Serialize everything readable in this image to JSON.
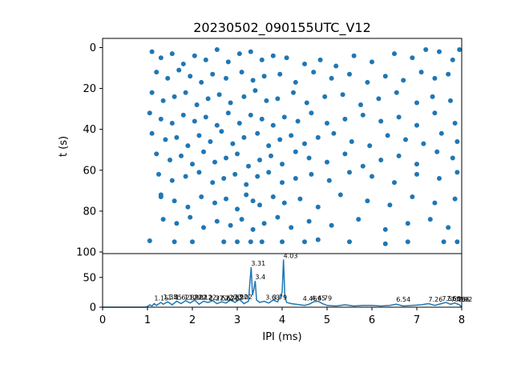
{
  "chart_data": [
    {
      "type": "scatter",
      "title": "20230502_090155UTC_V12",
      "xlabel": "",
      "ylabel": "t (s)",
      "xlim": [
        0,
        8
      ],
      "ylim": [
        100,
        -4
      ],
      "y_inverted": true,
      "yticks": [
        0,
        20,
        40,
        60,
        80,
        100
      ],
      "color": "#1f77b4",
      "series": [
        {
          "points": [
            [
              1.05,
              94.5
            ],
            [
              1.3,
              73
            ],
            [
              1.6,
              95
            ],
            [
              2.0,
              95
            ],
            [
              2.7,
              95
            ],
            [
              3.0,
              95
            ],
            [
              3.3,
              95
            ],
            [
              3.55,
              95
            ],
            [
              4.0,
              95
            ],
            [
              4.5,
              95
            ],
            [
              4.8,
              94
            ],
            [
              5.5,
              95
            ],
            [
              6.3,
              96
            ],
            [
              6.8,
              95
            ],
            [
              7.6,
              95
            ],
            [
              7.9,
              95
            ],
            [
              1.1,
              2
            ],
            [
              1.3,
              5
            ],
            [
              1.55,
              3
            ],
            [
              1.8,
              8
            ],
            [
              2.05,
              4
            ],
            [
              2.3,
              6
            ],
            [
              2.55,
              1
            ],
            [
              2.8,
              7
            ],
            [
              3.05,
              3
            ],
            [
              3.3,
              2
            ],
            [
              3.55,
              6
            ],
            [
              3.8,
              4
            ],
            [
              4.1,
              5
            ],
            [
              4.5,
              8
            ],
            [
              4.85,
              6
            ],
            [
              5.2,
              9
            ],
            [
              5.6,
              4
            ],
            [
              6.0,
              7
            ],
            [
              6.5,
              3
            ],
            [
              6.9,
              5
            ],
            [
              7.2,
              1
            ],
            [
              7.5,
              2
            ],
            [
              7.8,
              6
            ],
            [
              7.95,
              1
            ],
            [
              1.2,
              12
            ],
            [
              1.45,
              15
            ],
            [
              1.7,
              11
            ],
            [
              1.95,
              14
            ],
            [
              2.2,
              17
            ],
            [
              2.45,
              13
            ],
            [
              2.75,
              15
            ],
            [
              3.1,
              12
            ],
            [
              3.35,
              16
            ],
            [
              3.6,
              14
            ],
            [
              3.95,
              13
            ],
            [
              4.3,
              17
            ],
            [
              4.7,
              12
            ],
            [
              5.1,
              15
            ],
            [
              5.5,
              13
            ],
            [
              5.9,
              17
            ],
            [
              6.3,
              14
            ],
            [
              6.7,
              16
            ],
            [
              7.1,
              12
            ],
            [
              7.4,
              15
            ],
            [
              7.7,
              13
            ],
            [
              1.1,
              22
            ],
            [
              1.35,
              26
            ],
            [
              1.6,
              24
            ],
            [
              1.85,
              22
            ],
            [
              2.1,
              28
            ],
            [
              2.35,
              25
            ],
            [
              2.6,
              23
            ],
            [
              2.85,
              27
            ],
            [
              3.15,
              24
            ],
            [
              3.4,
              21
            ],
            [
              3.65,
              26
            ],
            [
              3.9,
              25
            ],
            [
              4.25,
              22
            ],
            [
              4.55,
              27
            ],
            [
              4.95,
              24
            ],
            [
              5.35,
              23
            ],
            [
              5.75,
              28
            ],
            [
              6.15,
              25
            ],
            [
              6.55,
              22
            ],
            [
              7.0,
              27
            ],
            [
              7.35,
              24
            ],
            [
              7.75,
              26
            ],
            [
              1.05,
              32
            ],
            [
              1.3,
              35
            ],
            [
              1.55,
              37
            ],
            [
              1.8,
              33
            ],
            [
              2.05,
              36
            ],
            [
              2.3,
              34
            ],
            [
              2.55,
              38
            ],
            [
              2.8,
              32
            ],
            [
              3.05,
              37
            ],
            [
              3.3,
              33
            ],
            [
              3.55,
              35
            ],
            [
              3.8,
              38
            ],
            [
              4.05,
              34
            ],
            [
              4.35,
              36
            ],
            [
              4.65,
              32
            ],
            [
              5.0,
              37
            ],
            [
              5.4,
              35
            ],
            [
              5.8,
              33
            ],
            [
              6.2,
              36
            ],
            [
              6.6,
              34
            ],
            [
              7.0,
              38
            ],
            [
              7.4,
              32
            ],
            [
              7.85,
              37
            ],
            [
              1.1,
              42
            ],
            [
              1.4,
              45
            ],
            [
              1.65,
              44
            ],
            [
              1.9,
              48
            ],
            [
              2.15,
              43
            ],
            [
              2.4,
              46
            ],
            [
              2.65,
              41
            ],
            [
              2.9,
              47
            ],
            [
              3.15,
              44
            ],
            [
              3.45,
              42
            ],
            [
              3.7,
              48
            ],
            [
              3.95,
              45
            ],
            [
              4.2,
              43
            ],
            [
              4.5,
              47
            ],
            [
              4.8,
              44
            ],
            [
              5.15,
              42
            ],
            [
              5.55,
              46
            ],
            [
              5.95,
              48
            ],
            [
              6.35,
              43
            ],
            [
              6.75,
              45
            ],
            [
              7.15,
              47
            ],
            [
              7.55,
              42
            ],
            [
              7.9,
              46
            ],
            [
              1.2,
              52
            ],
            [
              1.5,
              55
            ],
            [
              1.75,
              53
            ],
            [
              2.0,
              57
            ],
            [
              2.25,
              51
            ],
            [
              2.5,
              56
            ],
            [
              2.75,
              54
            ],
            [
              3.0,
              52
            ],
            [
              3.25,
              58
            ],
            [
              3.5,
              55
            ],
            [
              3.75,
              53
            ],
            [
              4.0,
              57
            ],
            [
              4.3,
              51
            ],
            [
              4.6,
              54
            ],
            [
              5.0,
              56
            ],
            [
              5.4,
              52
            ],
            [
              5.8,
              58
            ],
            [
              6.2,
              55
            ],
            [
              6.6,
              53
            ],
            [
              7.0,
              57
            ],
            [
              7.45,
              51
            ],
            [
              7.8,
              54
            ],
            [
              1.25,
              62
            ],
            [
              1.55,
              65
            ],
            [
              1.85,
              63
            ],
            [
              2.15,
              61
            ],
            [
              2.45,
              66
            ],
            [
              2.7,
              64
            ],
            [
              2.95,
              62
            ],
            [
              3.2,
              67
            ],
            [
              3.45,
              63
            ],
            [
              3.7,
              61
            ],
            [
              4.0,
              66
            ],
            [
              4.3,
              64
            ],
            [
              4.65,
              62
            ],
            [
              5.05,
              65
            ],
            [
              5.5,
              61
            ],
            [
              6.0,
              63
            ],
            [
              6.5,
              66
            ],
            [
              7.0,
              62
            ],
            [
              7.5,
              64
            ],
            [
              7.9,
              61
            ],
            [
              1.3,
              72
            ],
            [
              1.6,
              75
            ],
            [
              1.9,
              78
            ],
            [
              2.2,
              73
            ],
            [
              2.5,
              76
            ],
            [
              2.75,
              74
            ],
            [
              3.0,
              79
            ],
            [
              3.2,
              72
            ],
            [
              3.35,
              75
            ],
            [
              3.5,
              77
            ],
            [
              3.8,
              73
            ],
            [
              4.05,
              76
            ],
            [
              4.4,
              74
            ],
            [
              4.8,
              78
            ],
            [
              5.3,
              72
            ],
            [
              5.9,
              75
            ],
            [
              6.4,
              77
            ],
            [
              6.9,
              73
            ],
            [
              7.4,
              76
            ],
            [
              7.85,
              74
            ],
            [
              1.35,
              84
            ],
            [
              1.65,
              86
            ],
            [
              1.95,
              83
            ],
            [
              2.25,
              88
            ],
            [
              2.55,
              85
            ],
            [
              2.85,
              87
            ],
            [
              3.1,
              84
            ],
            [
              3.35,
              89
            ],
            [
              3.6,
              86
            ],
            [
              3.9,
              83
            ],
            [
              4.2,
              88
            ],
            [
              4.6,
              85
            ],
            [
              5.1,
              87
            ],
            [
              5.7,
              84
            ],
            [
              6.3,
              89
            ],
            [
              6.8,
              86
            ],
            [
              7.3,
              84
            ],
            [
              7.7,
              88
            ]
          ]
        }
      ]
    },
    {
      "type": "line",
      "xlabel": "IPI (ms)",
      "ylabel": "",
      "xlim": [
        0,
        8
      ],
      "ylim": [
        0,
        90
      ],
      "xticks": [
        0,
        1,
        2,
        3,
        4,
        5,
        6,
        7,
        8
      ],
      "yticks": [
        0,
        50
      ],
      "color": "#1f77b4",
      "series": [
        {
          "x": [
            0,
            0.95,
            1.0,
            1.05,
            1.1,
            1.15,
            1.2,
            1.3,
            1.35,
            1.45,
            1.55,
            1.65,
            1.75,
            1.85,
            1.95,
            2.05,
            2.15,
            2.25,
            2.35,
            2.45,
            2.55,
            2.65,
            2.75,
            2.85,
            2.95,
            3.05,
            3.15,
            3.25,
            3.28,
            3.31,
            3.34,
            3.37,
            3.4,
            3.43,
            3.5,
            3.6,
            3.7,
            3.8,
            3.9,
            4.0,
            4.03,
            4.06,
            4.1,
            4.2,
            4.3,
            4.4,
            4.5,
            4.6,
            4.7,
            4.8,
            4.9,
            5.0,
            5.2,
            5.4,
            5.6,
            5.8,
            6.0,
            6.2,
            6.4,
            6.54,
            6.7,
            6.9,
            7.1,
            7.26,
            7.4,
            7.55,
            7.65,
            7.75,
            7.85,
            7.95,
            8.0
          ],
          "y": [
            0,
            0,
            1,
            4,
            2,
            6,
            3,
            8,
            5,
            9,
            4,
            10,
            6,
            11,
            7,
            12,
            5,
            10,
            8,
            11,
            6,
            9,
            7,
            12,
            8,
            13,
            6,
            10,
            40,
            67,
            20,
            30,
            44,
            12,
            8,
            10,
            7,
            12,
            9,
            25,
            80,
            18,
            8,
            6,
            5,
            4,
            3,
            5,
            9,
            10,
            6,
            3,
            2,
            4,
            2,
            3,
            3,
            2,
            3,
            5,
            2,
            3,
            4,
            6,
            3,
            6,
            8,
            5,
            7,
            4,
            0
          ]
        }
      ],
      "annotations": [
        {
          "x": 1.15,
          "y": 9,
          "text": "1.15"
        },
        {
          "x": 1.35,
          "y": 11,
          "text": "1.35"
        },
        {
          "x": 1.45,
          "y": 10,
          "text": "1.45"
        },
        {
          "x": 1.62,
          "y": 10,
          "text": "1.62"
        },
        {
          "x": 1.82,
          "y": 10,
          "text": "1.82"
        },
        {
          "x": 1.92,
          "y": 10,
          "text": "1.92"
        },
        {
          "x": 2.02,
          "y": 10,
          "text": "2.02"
        },
        {
          "x": 2.12,
          "y": 10,
          "text": "2.12"
        },
        {
          "x": 2.22,
          "y": 10,
          "text": "2.22"
        },
        {
          "x": 2.37,
          "y": 9,
          "text": "2.37"
        },
        {
          "x": 2.52,
          "y": 9,
          "text": "2.52"
        },
        {
          "x": 2.62,
          "y": 9,
          "text": "2.62"
        },
        {
          "x": 2.72,
          "y": 9,
          "text": "2.72"
        },
        {
          "x": 2.82,
          "y": 10,
          "text": "2.82"
        },
        {
          "x": 2.92,
          "y": 11,
          "text": "2.92"
        },
        {
          "x": 3.02,
          "y": 11,
          "text": "3.02"
        },
        {
          "x": 3.31,
          "y": 67,
          "text": "3.31"
        },
        {
          "x": 3.4,
          "y": 44,
          "text": "3.4"
        },
        {
          "x": 3.63,
          "y": 10,
          "text": "3.63"
        },
        {
          "x": 3.79,
          "y": 10,
          "text": "3.79"
        },
        {
          "x": 4.03,
          "y": 80,
          "text": "4.03"
        },
        {
          "x": 4.46,
          "y": 8,
          "text": "4.46"
        },
        {
          "x": 4.65,
          "y": 9,
          "text": "4.65"
        },
        {
          "x": 4.79,
          "y": 9,
          "text": "4.79"
        },
        {
          "x": 6.54,
          "y": 7,
          "text": "6.54"
        },
        {
          "x": 7.26,
          "y": 7,
          "text": "7.26"
        },
        {
          "x": 7.56,
          "y": 8,
          "text": "7.56"
        },
        {
          "x": 7.66,
          "y": 8,
          "text": "7.66"
        },
        {
          "x": 7.76,
          "y": 7,
          "text": "7.76"
        },
        {
          "x": 7.86,
          "y": 7,
          "text": "7.86"
        },
        {
          "x": 7.92,
          "y": 7,
          "text": "7.92"
        }
      ]
    }
  ]
}
